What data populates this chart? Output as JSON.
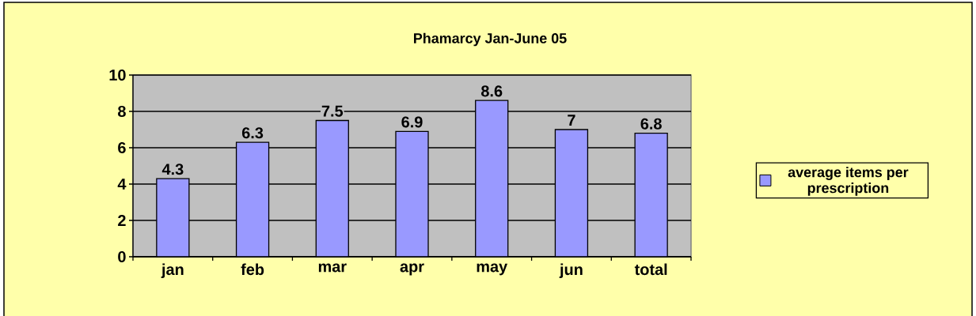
{
  "chart_data": {
    "type": "bar",
    "title": "Phamarcy Jan-June 05",
    "categories": [
      "jan",
      "feb",
      "mar",
      "apr",
      "may",
      "jun",
      "total"
    ],
    "series": [
      {
        "name": "average items per prescription",
        "color": "#9999ff",
        "values": [
          4.3,
          6.3,
          7.5,
          6.9,
          8.6,
          7,
          6.8
        ]
      }
    ],
    "ylim": [
      0,
      10
    ],
    "yticks": [
      0,
      2,
      4,
      6,
      8,
      10
    ],
    "grid": "y",
    "legend": "right",
    "data_labels": true
  }
}
